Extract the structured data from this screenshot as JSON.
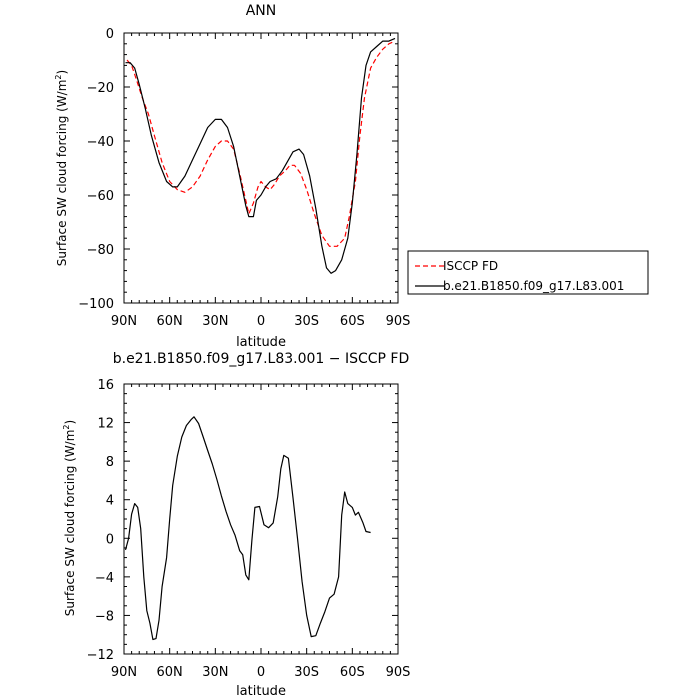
{
  "chart_data": [
    {
      "type": "line",
      "title": "ANN",
      "xlabel": "latitude",
      "ylabel": "Surface SW cloud forcing (W/m²)",
      "ylabel_main": "Surface SW cloud forcing (W/m",
      "ylabel_sup": "2",
      "ylabel_tail": ")",
      "xlim": [
        90,
        -90
      ],
      "ylim": [
        -100,
        0
      ],
      "xticks": [
        90,
        60,
        30,
        0,
        -30,
        -60,
        -90
      ],
      "xtick_labels": [
        "90N",
        "60N",
        "30N",
        "0",
        "30S",
        "60S",
        "90S"
      ],
      "yticks": [
        -100,
        -80,
        -60,
        -40,
        -20,
        0
      ],
      "ytick_labels": [
        "−100",
        "−80",
        "−60",
        "−40",
        "−20",
        "0"
      ],
      "legend_position": "right",
      "series": [
        {
          "name": "ISCCP FD",
          "color": "#ff0000",
          "style": "dashed",
          "points": [
            [
              88,
              -10
            ],
            [
              85,
              -12
            ],
            [
              82,
              -17
            ],
            [
              78,
              -24
            ],
            [
              74,
              -30
            ],
            [
              70,
              -38
            ],
            [
              65,
              -48
            ],
            [
              60,
              -55
            ],
            [
              55,
              -58
            ],
            [
              50,
              -59
            ],
            [
              45,
              -57
            ],
            [
              40,
              -53
            ],
            [
              35,
              -47
            ],
            [
              30,
              -42
            ],
            [
              26,
              -40
            ],
            [
              22,
              -40
            ],
            [
              18,
              -43
            ],
            [
              14,
              -52
            ],
            [
              10,
              -62
            ],
            [
              8,
              -67
            ],
            [
              5,
              -63
            ],
            [
              2,
              -57
            ],
            [
              0,
              -55
            ],
            [
              -3,
              -57
            ],
            [
              -6,
              -58
            ],
            [
              -9,
              -56
            ],
            [
              -12,
              -53
            ],
            [
              -16,
              -51
            ],
            [
              -19,
              -49
            ],
            [
              -22,
              -49
            ],
            [
              -26,
              -52
            ],
            [
              -30,
              -58
            ],
            [
              -35,
              -67
            ],
            [
              -40,
              -75
            ],
            [
              -45,
              -79
            ],
            [
              -50,
              -79
            ],
            [
              -55,
              -76
            ],
            [
              -58,
              -68
            ],
            [
              -62,
              -55
            ],
            [
              -65,
              -38
            ],
            [
              -68,
              -24
            ],
            [
              -72,
              -13
            ],
            [
              -76,
              -9
            ],
            [
              -80,
              -6
            ],
            [
              -84,
              -4
            ],
            [
              -88,
              -3
            ]
          ]
        },
        {
          "name": "b.e21.B1850.f09_g17.L83.001",
          "color": "#000000",
          "style": "solid",
          "points": [
            [
              89,
              -11
            ],
            [
              86,
              -11
            ],
            [
              83,
              -13
            ],
            [
              80,
              -19
            ],
            [
              76,
              -28
            ],
            [
              72,
              -38
            ],
            [
              67,
              -48
            ],
            [
              62,
              -55
            ],
            [
              58,
              -57
            ],
            [
              55,
              -57
            ],
            [
              50,
              -53
            ],
            [
              45,
              -47
            ],
            [
              40,
              -41
            ],
            [
              35,
              -35
            ],
            [
              30,
              -32
            ],
            [
              26,
              -32
            ],
            [
              22,
              -35
            ],
            [
              18,
              -42
            ],
            [
              14,
              -53
            ],
            [
              10,
              -64
            ],
            [
              8,
              -68
            ],
            [
              5,
              -68
            ],
            [
              3,
              -62
            ],
            [
              0,
              -60
            ],
            [
              -3,
              -57
            ],
            [
              -6,
              -55
            ],
            [
              -10,
              -54
            ],
            [
              -14,
              -51
            ],
            [
              -18,
              -47
            ],
            [
              -21,
              -44
            ],
            [
              -25,
              -43
            ],
            [
              -28,
              -45
            ],
            [
              -32,
              -53
            ],
            [
              -36,
              -65
            ],
            [
              -40,
              -79
            ],
            [
              -43,
              -87
            ],
            [
              -46,
              -89
            ],
            [
              -49,
              -88
            ],
            [
              -53,
              -84
            ],
            [
              -57,
              -76
            ],
            [
              -60,
              -63
            ],
            [
              -63,
              -45
            ],
            [
              -66,
              -24
            ],
            [
              -69,
              -12
            ],
            [
              -72,
              -7
            ],
            [
              -76,
              -5
            ],
            [
              -80,
              -3
            ],
            [
              -84,
              -3
            ],
            [
              -88,
              -2
            ]
          ]
        }
      ]
    },
    {
      "type": "line",
      "title": "b.e21.B1850.f09_g17.L83.001 − ISCCP FD",
      "xlabel": "latitude",
      "ylabel": "Surface SW cloud forcing (W/m²)",
      "ylabel_main": "Surface SW cloud forcing (W/m",
      "ylabel_sup": "2",
      "ylabel_tail": ")",
      "xlim": [
        90,
        -90
      ],
      "ylim": [
        -12,
        16
      ],
      "xticks": [
        90,
        60,
        30,
        0,
        -30,
        -60,
        -90
      ],
      "xtick_labels": [
        "90N",
        "60N",
        "30N",
        "0",
        "30S",
        "60S",
        "90S"
      ],
      "yticks": [
        -12,
        -8,
        -4,
        0,
        4,
        8,
        12,
        16
      ],
      "ytick_labels": [
        "−12",
        "−8",
        "−4",
        "0",
        "4",
        "8",
        "12",
        "16"
      ],
      "series": [
        {
          "color": "#000000",
          "style": "solid",
          "points": [
            [
              89,
              -1.2
            ],
            [
              87,
              0
            ],
            [
              85,
              2.5
            ],
            [
              83,
              3.6
            ],
            [
              81,
              3.2
            ],
            [
              79,
              1
            ],
            [
              77,
              -4
            ],
            [
              75,
              -7.5
            ],
            [
              73,
              -8.8
            ],
            [
              71,
              -10.5
            ],
            [
              69,
              -10.4
            ],
            [
              67,
              -8.5
            ],
            [
              65,
              -5
            ],
            [
              62,
              -2
            ],
            [
              60,
              2
            ],
            [
              58,
              5.5
            ],
            [
              55,
              8.5
            ],
            [
              52,
              10.5
            ],
            [
              49,
              11.7
            ],
            [
              46,
              12.3
            ],
            [
              44,
              12.6
            ],
            [
              41,
              11.9
            ],
            [
              38,
              10.5
            ],
            [
              35,
              9.1
            ],
            [
              32,
              7.7
            ],
            [
              29,
              6.1
            ],
            [
              26,
              4.4
            ],
            [
              23,
              2.8
            ],
            [
              20,
              1.4
            ],
            [
              17,
              0.3
            ],
            [
              14,
              -1.3
            ],
            [
              12,
              -1.7
            ],
            [
              10,
              -3.8
            ],
            [
              8,
              -4.3
            ],
            [
              6,
              -0.2
            ],
            [
              4,
              3.2
            ],
            [
              1,
              3.3
            ],
            [
              -2,
              1.4
            ],
            [
              -5,
              1.1
            ],
            [
              -8,
              1.6
            ],
            [
              -11,
              4.3
            ],
            [
              -13,
              7.2
            ],
            [
              -15,
              8.6
            ],
            [
              -18,
              8.3
            ],
            [
              -21,
              4.2
            ],
            [
              -24,
              0
            ],
            [
              -27,
              -4.5
            ],
            [
              -30,
              -8
            ],
            [
              -33,
              -10.2
            ],
            [
              -36,
              -10.1
            ],
            [
              -39,
              -8.8
            ],
            [
              -42,
              -7.6
            ],
            [
              -45,
              -6.2
            ],
            [
              -48,
              -5.8
            ],
            [
              -51,
              -4
            ],
            [
              -53,
              2.4
            ],
            [
              -55,
              4.8
            ],
            [
              -57,
              3.6
            ],
            [
              -60,
              3.2
            ],
            [
              -62,
              2.4
            ],
            [
              -64,
              2.7
            ],
            [
              -67,
              1.6
            ],
            [
              -69,
              0.7
            ],
            [
              -72,
              0.6
            ]
          ]
        }
      ]
    }
  ]
}
